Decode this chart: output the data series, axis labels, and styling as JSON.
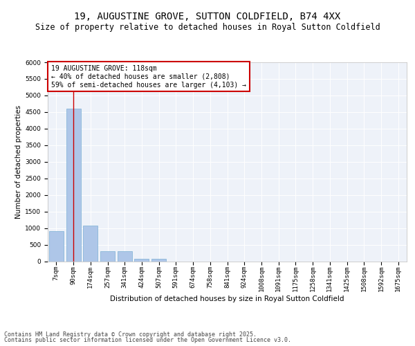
{
  "title": "19, AUGUSTINE GROVE, SUTTON COLDFIELD, B74 4XX",
  "subtitle": "Size of property relative to detached houses in Royal Sutton Coldfield",
  "xlabel": "Distribution of detached houses by size in Royal Sutton Coldfield",
  "ylabel": "Number of detached properties",
  "categories": [
    "7sqm",
    "90sqm",
    "174sqm",
    "257sqm",
    "341sqm",
    "424sqm",
    "507sqm",
    "591sqm",
    "674sqm",
    "758sqm",
    "841sqm",
    "924sqm",
    "1008sqm",
    "1091sqm",
    "1175sqm",
    "1258sqm",
    "1341sqm",
    "1425sqm",
    "1508sqm",
    "1592sqm",
    "1675sqm"
  ],
  "values": [
    900,
    4600,
    1075,
    295,
    295,
    75,
    75,
    0,
    0,
    0,
    0,
    0,
    0,
    0,
    0,
    0,
    0,
    0,
    0,
    0,
    0
  ],
  "bar_color": "#aec6e8",
  "bar_edgecolor": "#7aafd4",
  "annotation_line1": "19 AUGUSTINE GROVE: 118sqm",
  "annotation_line2": "← 40% of detached houses are smaller (2,808)",
  "annotation_line3": "59% of semi-detached houses are larger (4,103) →",
  "annotation_box_edgecolor": "#cc0000",
  "vline_x": 1,
  "vline_color": "#cc0000",
  "ylim": [
    0,
    6000
  ],
  "yticks": [
    0,
    500,
    1000,
    1500,
    2000,
    2500,
    3000,
    3500,
    4000,
    4500,
    5000,
    5500,
    6000
  ],
  "background_color": "#eef2f9",
  "footer_line1": "Contains HM Land Registry data © Crown copyright and database right 2025.",
  "footer_line2": "Contains public sector information licensed under the Open Government Licence v3.0.",
  "title_fontsize": 10,
  "subtitle_fontsize": 8.5,
  "xlabel_fontsize": 7.5,
  "ylabel_fontsize": 7.5,
  "tick_fontsize": 6.5,
  "annotation_fontsize": 7,
  "footer_fontsize": 6
}
